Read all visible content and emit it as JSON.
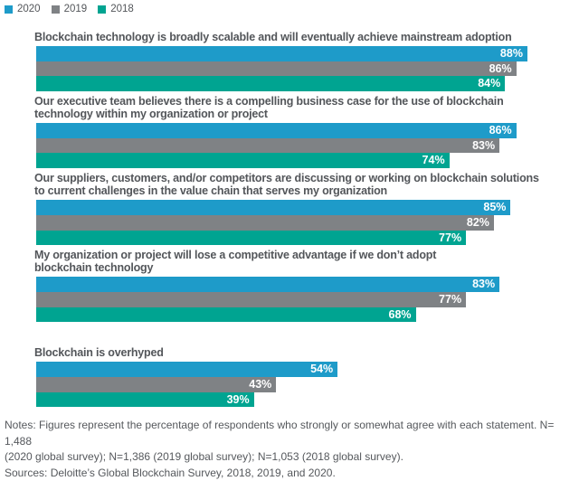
{
  "legend": {
    "items": [
      {
        "label": "2020"
      },
      {
        "label": "2019"
      },
      {
        "label": "2018"
      }
    ]
  },
  "chart_data": {
    "type": "bar",
    "orientation": "horizontal",
    "title": "",
    "xlabel": "",
    "ylabel": "",
    "xlim": [
      0,
      100
    ],
    "value_suffix": "%",
    "grid": false,
    "legend_position": "top-left",
    "series_colors": {
      "2020": "#1E9BC9",
      "2019": "#7F8285",
      "2018": "#00A491"
    },
    "categories": [
      "Blockchain technology is broadly scalable and will eventually achieve mainstream adoption",
      "Our executive team believes there is a compelling business case for the use of blockchain technology within my organization or project",
      "Our suppliers, customers, and/or competitors are discussing or working on blockchain solutions to current challenges in the value chain that serves my organization",
      "My organization or project will lose a competitive advantage if we don’t adopt blockchain technology",
      "Blockchain is overhyped"
    ],
    "category_display_lines": [
      [
        "Blockchain technology is broadly scalable and will eventually achieve mainstream adoption"
      ],
      [
        "Our executive team believes there is a compelling business case for the use of blockchain",
        "technology within my organization or project"
      ],
      [
        "Our suppliers, customers, and/or competitors are discussing or working on blockchain solutions",
        "to current challenges in the value chain that serves my organization"
      ],
      [
        "My organization or project will lose a competitive advantage if we don’t adopt",
        "blockchain technology"
      ],
      [
        "Blockchain is overhyped"
      ]
    ],
    "series": [
      {
        "name": "2020",
        "values": [
          88,
          86,
          85,
          83,
          54
        ]
      },
      {
        "name": "2019",
        "values": [
          86,
          83,
          82,
          77,
          43
        ]
      },
      {
        "name": "2018",
        "values": [
          84,
          74,
          77,
          68,
          39
        ]
      }
    ]
  },
  "notes": {
    "lines": [
      "Notes: Figures represent the percentage of respondents who strongly or somewhat agree with each statement. N= 1,488",
      "(2020 global survey); N=1,386 (2019 global survey); N=1,053 (2018 global survey).",
      "Sources: Deloitte’s Global Blockchain Survey, 2018, 2019, and 2020."
    ]
  }
}
